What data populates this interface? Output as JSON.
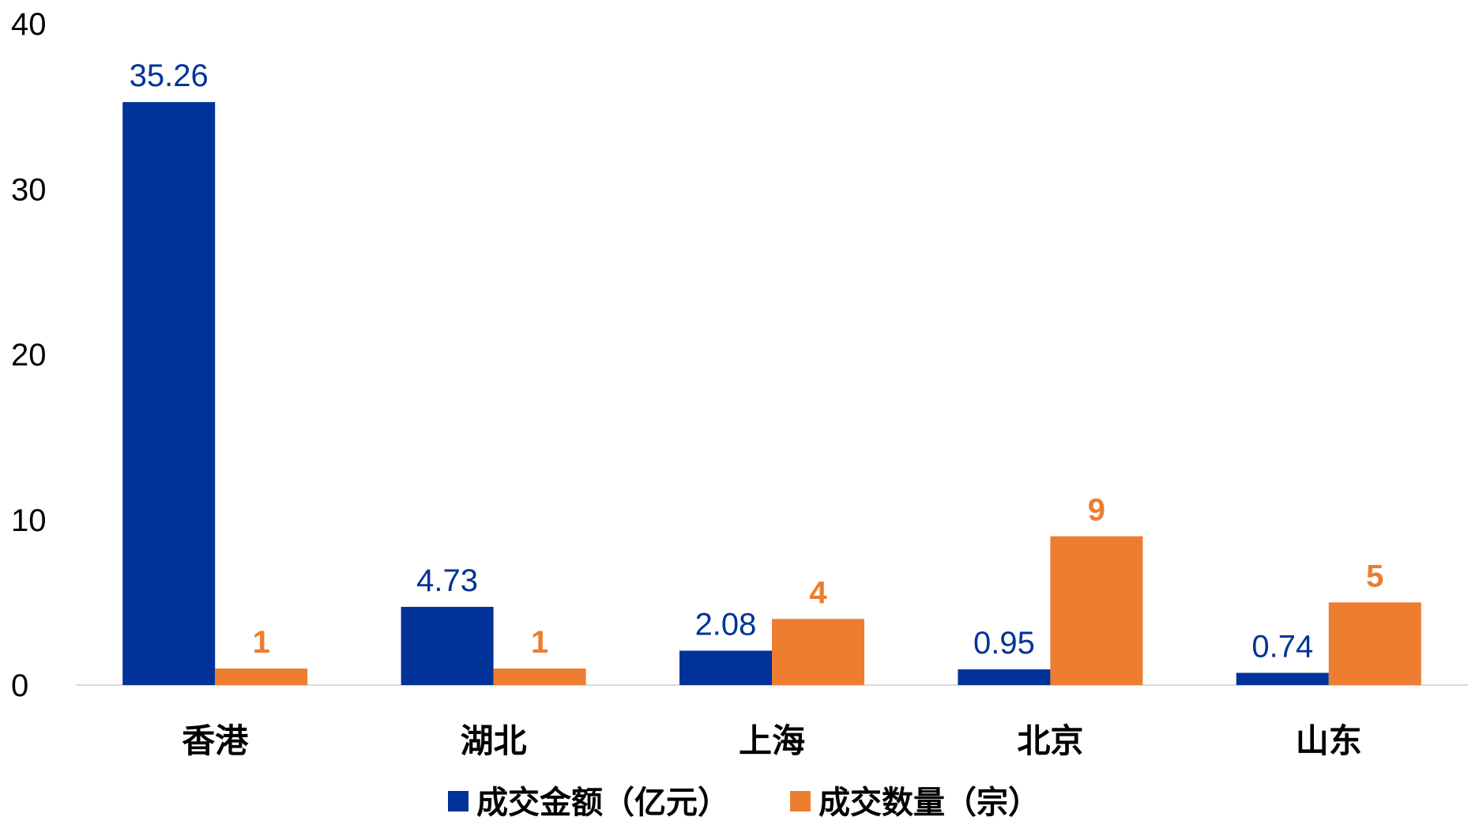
{
  "chart_data": {
    "type": "bar",
    "categories": [
      "香港",
      "湖北",
      "上海",
      "北京",
      "山东"
    ],
    "series": [
      {
        "name": "成交金额（亿元）",
        "values": [
          35.26,
          4.73,
          2.08,
          0.95,
          0.74
        ],
        "labels": [
          "35.26",
          "4.73",
          "2.08",
          "0.95",
          "0.74"
        ],
        "color": "#003399"
      },
      {
        "name": "成交数量（宗）",
        "values": [
          1,
          1,
          4,
          9,
          5
        ],
        "labels": [
          "1",
          "1",
          "4",
          "9",
          "5"
        ],
        "color": "#ED7D31"
      }
    ],
    "ylim": [
      0,
      40
    ],
    "yticks": [
      "0",
      "10",
      "20",
      "30",
      "40"
    ],
    "title": "",
    "xlabel": "",
    "ylabel": "",
    "grid": false,
    "legend_position": "bottom",
    "colors": {
      "axis_line": "#d9d9d9",
      "label_text": "#000000"
    }
  }
}
